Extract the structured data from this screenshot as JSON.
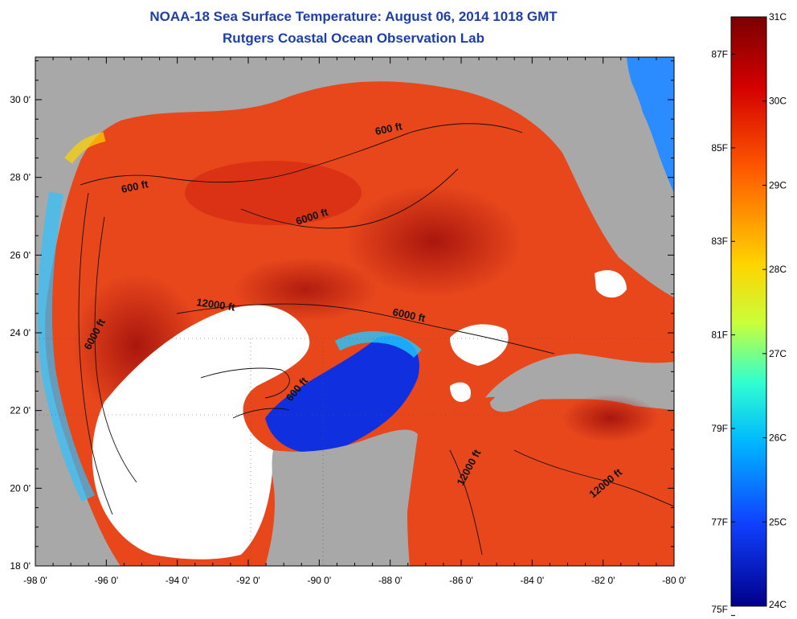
{
  "header": {
    "title": "NOAA-18 Sea Surface Temperature:  August 06, 2014 1018 GMT",
    "subtitle": "Rutgers Coastal Ocean Observation Lab"
  },
  "axes": {
    "x_ticks": [
      "-98 0'",
      "-96 0'",
      "-94 0'",
      "-92 0'",
      "-90 0'",
      "-88 0'",
      "-86 0'",
      "-84 0'",
      "-82 0'",
      "-80 0'"
    ],
    "y_ticks": [
      "30 0'",
      "28 0'",
      "26 0'",
      "24 0'",
      "22 0'",
      "20 0'",
      "18 0'"
    ]
  },
  "contours": {
    "c600_a": "600 ft",
    "c600_b": "600 ft",
    "c600_c": "600 ft",
    "c6000_a": "6000 ft",
    "c6000_b": "6000 ft",
    "c6000_c": "6000 ft",
    "c12000_a": "12000 ft",
    "c12000_b": "12000 ft",
    "c12000_c": "12000 ft"
  },
  "colorbar": {
    "celsius": [
      "31C",
      "30C",
      "29C",
      "28C",
      "27C",
      "26C",
      "25C",
      "24C"
    ],
    "fahrenheit": [
      "87F",
      "85F",
      "83F",
      "81F",
      "79F",
      "77F",
      "75F"
    ]
  },
  "colors": {
    "title": "#1c3fa8",
    "land": "#a8a8a8",
    "cloud": "#ffffff",
    "warm": "#e0301a"
  }
}
